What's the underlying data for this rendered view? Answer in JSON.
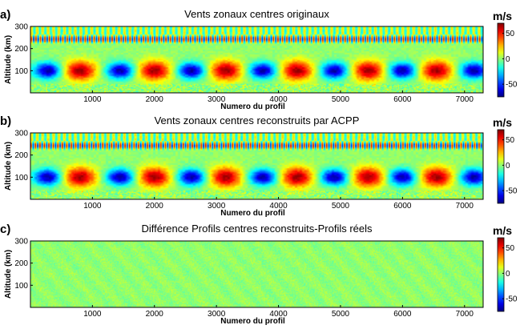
{
  "chart_data": [
    {
      "type": "heatmap",
      "panel_label": "a)",
      "title": "Vents zonaux centres originaux",
      "xlabel": "Numero du profil",
      "ylabel": "Altitude (km)",
      "xlim": [
        1,
        7300
      ],
      "ylim": [
        0,
        300
      ],
      "xticks": [
        1000,
        2000,
        3000,
        4000,
        5000,
        6000,
        7000
      ],
      "yticks": [
        100,
        200,
        300
      ],
      "colorbar": {
        "unit": "m/s",
        "ticks": [
          50,
          0,
          -50
        ],
        "range": [
          -75,
          70
        ]
      },
      "pattern": "oscillating",
      "features": {
        "positive_jets_x": [
          800,
          2000,
          3150,
          4300,
          5450,
          6550
        ],
        "negative_jets_x": [
          280,
          1450,
          2600,
          3750,
          4900,
          6000,
          7150
        ],
        "jet_altitude_km": 100,
        "high_frequency_band_km": [
          220,
          265
        ],
        "peak_positive": 65,
        "peak_negative": -70
      }
    },
    {
      "type": "heatmap",
      "panel_label": "b)",
      "title": "Vents zonaux centres reconstruits par ACPP",
      "xlabel": "Numero du profil",
      "ylabel": "Altitude (km)",
      "xlim": [
        1,
        7300
      ],
      "ylim": [
        0,
        300
      ],
      "xticks": [
        1000,
        2000,
        3000,
        4000,
        5000,
        6000,
        7000
      ],
      "yticks": [
        100,
        200,
        300
      ],
      "colorbar": {
        "unit": "m/s",
        "ticks": [
          50,
          0,
          -50
        ],
        "range": [
          -75,
          70
        ]
      },
      "pattern": "oscillating",
      "features": {
        "positive_jets_x": [
          800,
          2000,
          3150,
          4300,
          5450,
          6550
        ],
        "negative_jets_x": [
          280,
          1450,
          2600,
          3750,
          4900,
          6000,
          7150
        ],
        "jet_altitude_km": 100,
        "high_frequency_band_km": [
          220,
          265
        ],
        "peak_positive": 65,
        "peak_negative": -70
      }
    },
    {
      "type": "heatmap",
      "panel_label": "c)",
      "title": "Différence Profils centres reconstruits-Profils réels",
      "xlabel": "Numero du profil",
      "ylabel": "Altitude (km)",
      "xlim": [
        1,
        7300
      ],
      "ylim": [
        0,
        300
      ],
      "xticks": [
        1000,
        2000,
        3000,
        4000,
        5000,
        6000,
        7000
      ],
      "yticks": [
        100,
        200,
        300
      ],
      "colorbar": {
        "unit": "m/s",
        "ticks": [
          50,
          0,
          -50
        ],
        "range": [
          -75,
          70
        ]
      },
      "pattern": "near_zero",
      "features": {
        "amplitude": 6
      }
    }
  ]
}
